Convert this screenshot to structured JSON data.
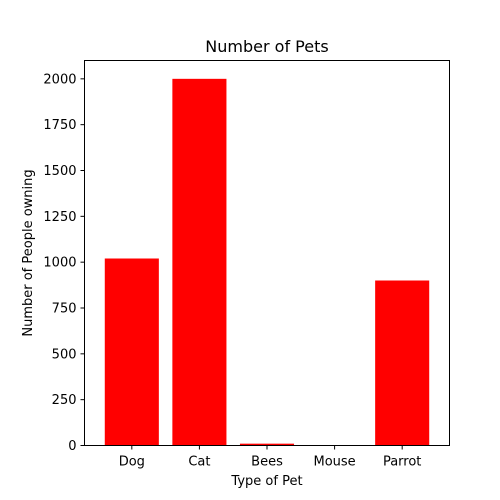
{
  "chart_data": {
    "type": "bar",
    "title": "Number of Pets",
    "xlabel": "Type of Pet",
    "ylabel": "Number of People owning",
    "categories": [
      "Dog",
      "Cat",
      "Bees",
      "Mouse",
      "Parrot"
    ],
    "values": [
      1020,
      2000,
      10,
      0,
      900
    ],
    "ylim": [
      0,
      2100
    ],
    "yticks": [
      0,
      250,
      500,
      750,
      1000,
      1250,
      1500,
      1750,
      2000
    ],
    "bar_color": "#ff0000",
    "grid": false,
    "legend": "none"
  }
}
